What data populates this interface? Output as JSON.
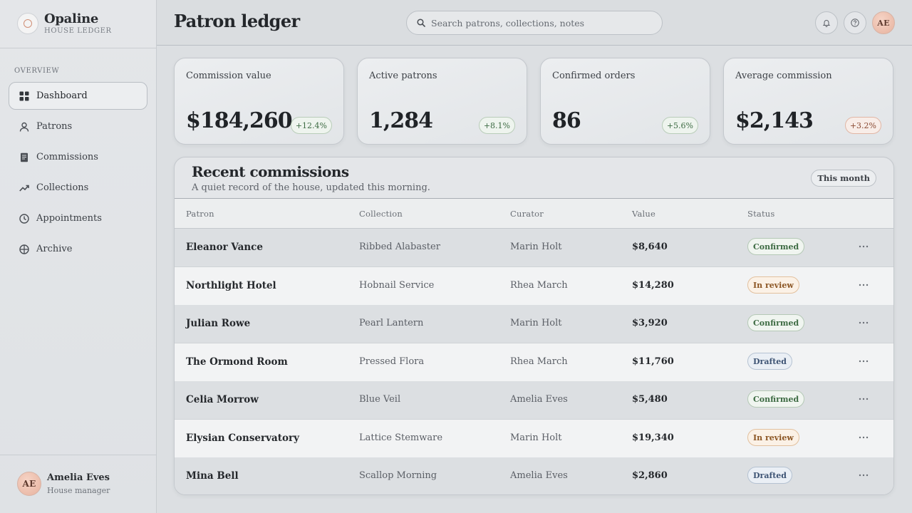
{
  "brand": {
    "name": "Opaline",
    "subtitle": "HOUSE LEDGER"
  },
  "sidebar": {
    "section_label": "OVERVIEW",
    "items": [
      {
        "label": "Dashboard",
        "icon": "grid-icon",
        "active": true
      },
      {
        "label": "Patrons",
        "icon": "user-icon"
      },
      {
        "label": "Commissions",
        "icon": "document-icon"
      },
      {
        "label": "Collections",
        "icon": "trend-icon"
      },
      {
        "label": "Appointments",
        "icon": "clock-icon"
      },
      {
        "label": "Archive",
        "icon": "globe-icon"
      }
    ],
    "user": {
      "initials": "AE",
      "name": "Amelia Eves",
      "role": "House manager"
    }
  },
  "header": {
    "title": "Patron ledger",
    "search_placeholder": "Search patrons, collections, notes",
    "avatar_initials": "AE"
  },
  "stats": [
    {
      "label": "Commission value",
      "value": "$184,260",
      "change": "+12.4%",
      "tone": "green"
    },
    {
      "label": "Active patrons",
      "value": "1,284",
      "change": "+8.1%",
      "tone": "green"
    },
    {
      "label": "Confirmed orders",
      "value": "86",
      "change": "+5.6%",
      "tone": "green"
    },
    {
      "label": "Average commission",
      "value": "$2,143",
      "change": "+3.2%",
      "tone": "orange"
    }
  ],
  "commissions": {
    "title": "Recent commissions",
    "subtitle": "A quiet record of the house, updated this morning.",
    "filter_label": "This month",
    "columns": [
      "Patron",
      "Collection",
      "Curator",
      "Value",
      "Status"
    ],
    "rows": [
      {
        "patron": "Eleanor Vance",
        "collection": "Ribbed Alabaster",
        "curator": "Marin Holt",
        "value": "$8,640",
        "status": "Confirmed"
      },
      {
        "patron": "Northlight Hotel",
        "collection": "Hobnail Service",
        "curator": "Rhea March",
        "value": "$14,280",
        "status": "In review"
      },
      {
        "patron": "Julian Rowe",
        "collection": "Pearl Lantern",
        "curator": "Marin Holt",
        "value": "$3,920",
        "status": "Confirmed"
      },
      {
        "patron": "The Ormond Room",
        "collection": "Pressed Flora",
        "curator": "Rhea March",
        "value": "$11,760",
        "status": "Drafted"
      },
      {
        "patron": "Celia Morrow",
        "collection": "Blue Veil",
        "curator": "Amelia Eves",
        "value": "$5,480",
        "status": "Confirmed"
      },
      {
        "patron": "Elysian Conservatory",
        "collection": "Lattice Stemware",
        "curator": "Marin Holt",
        "value": "$19,340",
        "status": "In review"
      },
      {
        "patron": "Mina Bell",
        "collection": "Scallop Morning",
        "curator": "Amelia Eves",
        "value": "$2,860",
        "status": "Drafted"
      }
    ]
  }
}
